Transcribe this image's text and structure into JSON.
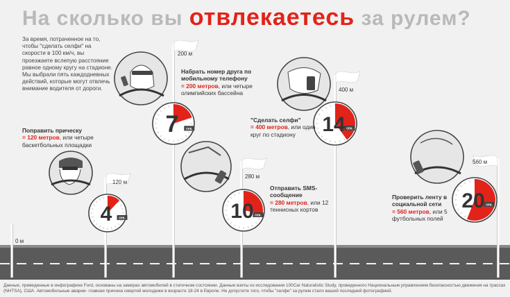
{
  "title": {
    "pre": "На сколько вы",
    "highlight": "отвлекаетесь",
    "post": "за рулем?"
  },
  "intro": "За время, потраченное на то, чтобы \"сделать селфи\" на скорости в 100 км/ч, вы проезжаете вслепую расстояние равное одному кругу на стадионе. Мы выбрали пять каждодневных действий, которые могут отвлечь внимание водителя от дороги.",
  "colors": {
    "accent": "#e2231a",
    "title_gray": "#b9b9b9",
    "road": "#5a5a5a"
  },
  "flags": [
    {
      "label": "0 м"
    },
    {
      "label": "120 м"
    },
    {
      "label": "200 м"
    },
    {
      "label": "280 м"
    },
    {
      "label": "400 м"
    },
    {
      "label": "560 м"
    }
  ],
  "timers": [
    {
      "seconds": "4",
      "unit": "сек.",
      "fraction": 0.12
    },
    {
      "seconds": "7",
      "unit": "сек.",
      "fraction": 0.2
    },
    {
      "seconds": "10",
      "unit": "сек.",
      "fraction": 0.28
    },
    {
      "seconds": "14",
      "unit": "сек.",
      "fraction": 0.4
    },
    {
      "seconds": "20",
      "unit": "сек.",
      "fraction": 0.56
    }
  ],
  "activities": {
    "hair": {
      "head": "Поправить прическу",
      "value": "= 120 метров",
      "rest": ", или четыре баскетбольных площадки"
    },
    "phone": {
      "head": "Набрать номер друга по мобильному телефону",
      "value": "= 200 метров",
      "rest": ", или четыре олимпийских бассейна"
    },
    "sms": {
      "head": "Отправить SMS-сообщение",
      "value": "= 280 метров",
      "rest": ", или 12 теннисных кортов"
    },
    "selfie": {
      "head": "\"Сделать селфи\"",
      "value": "= 400 метров",
      "rest": ", или один круг по стадиону"
    },
    "feed": {
      "head": "Проверить ленту в социальной сети",
      "value": "= 560 метров",
      "rest": ", или 5 футбольных полей"
    }
  },
  "footer": "Данные, приведенные в инфографике Ford, основаны на замерах автомобилей в статичном состоянии. Данные взяты из исследования 100Car Naturalistic Study, проведенного Национальным управлением безопасностью движения на трассах (NHTSA), США. Автомобильные аварии- главная причина смертей молодежи в возрасте 18-24 в Европе. Не допустите того, чтобы \"селфи\" за рулем стало вашей последней фотографией."
}
